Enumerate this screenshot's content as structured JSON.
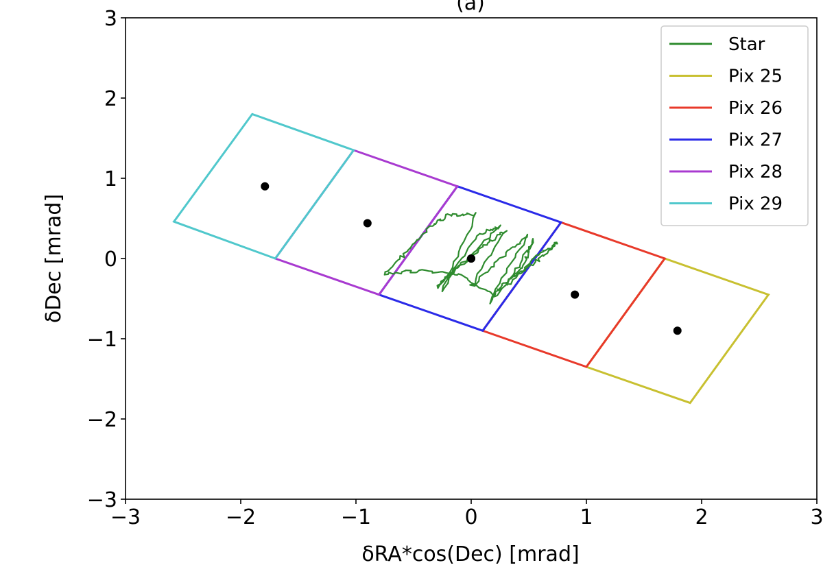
{
  "chart_data": {
    "type": "line",
    "title": "(a)",
    "xlabel": "δRA*cos(Dec) [mrad]",
    "ylabel": "δDec [mrad]",
    "xlim": [
      -3,
      3
    ],
    "ylim": [
      -3,
      3
    ],
    "xticks": [
      -3,
      -2,
      -1,
      0,
      1,
      2,
      3
    ],
    "yticks": [
      -3,
      -2,
      -1,
      0,
      1,
      2,
      3
    ],
    "xtick_labels": [
      "−3",
      "−2",
      "−1",
      "0",
      "1",
      "2",
      "3"
    ],
    "ytick_labels": [
      "−3",
      "−2",
      "−1",
      "0",
      "1",
      "2",
      "3"
    ],
    "grid": false,
    "legend_position": "top-right",
    "series": [
      {
        "name": "Star",
        "color": "#2e8b2e",
        "style": "wiggly-line",
        "points": [
          [
            -0.75,
            -0.2
          ],
          [
            -0.55,
            0.1
          ],
          [
            -0.35,
            0.4
          ],
          [
            -0.2,
            0.55
          ],
          [
            0.05,
            0.55
          ],
          [
            -0.25,
            -0.4
          ],
          [
            0.05,
            0.3
          ],
          [
            0.25,
            0.4
          ],
          [
            -0.1,
            -0.1
          ],
          [
            -0.3,
            -0.35
          ],
          [
            0.1,
            0.15
          ],
          [
            0.3,
            0.35
          ],
          [
            0.0,
            -0.35
          ],
          [
            0.3,
            0.05
          ],
          [
            0.5,
            0.3
          ],
          [
            0.15,
            -0.55
          ],
          [
            0.45,
            -0.1
          ],
          [
            0.55,
            0.25
          ],
          [
            0.3,
            -0.35
          ],
          [
            0.55,
            0.0
          ],
          [
            0.75,
            0.2
          ],
          [
            0.55,
            -0.05
          ],
          [
            0.3,
            -0.3
          ],
          [
            0.2,
            -0.45
          ],
          [
            -0.1,
            -0.2
          ],
          [
            -0.45,
            -0.15
          ],
          [
            -0.75,
            -0.2
          ]
        ]
      },
      {
        "name": "Pix 25",
        "color": "#c8c030",
        "corners": [
          [
            1.68,
            0.0
          ],
          [
            2.58,
            -0.45
          ],
          [
            1.9,
            -1.8
          ],
          [
            1.0,
            -1.35
          ]
        ],
        "center": [
          1.79,
          -0.9
        ]
      },
      {
        "name": "Pix 26",
        "color": "#e8392a",
        "corners": [
          [
            0.78,
            0.45
          ],
          [
            1.68,
            0.0
          ],
          [
            1.0,
            -1.35
          ],
          [
            0.1,
            -0.9
          ]
        ],
        "center": [
          0.9,
          -0.45
        ]
      },
      {
        "name": "Pix 27",
        "color": "#2a2ae8",
        "corners": [
          [
            -0.12,
            0.9
          ],
          [
            0.78,
            0.45
          ],
          [
            0.1,
            -0.9
          ],
          [
            -0.8,
            -0.45
          ]
        ],
        "center": [
          0.0,
          0.0
        ]
      },
      {
        "name": "Pix 28",
        "color": "#a83ad0",
        "corners": [
          [
            -1.02,
            1.35
          ],
          [
            -0.12,
            0.9
          ],
          [
            -0.8,
            -0.45
          ],
          [
            -1.7,
            0.0
          ]
        ],
        "center": [
          -0.9,
          0.44
        ]
      },
      {
        "name": "Pix 29",
        "color": "#50c8cc",
        "corners": [
          [
            -1.9,
            1.8
          ],
          [
            -1.02,
            1.35
          ],
          [
            -1.7,
            0.0
          ],
          [
            -2.58,
            0.46
          ]
        ],
        "center": [
          -1.79,
          0.9
        ]
      }
    ]
  }
}
